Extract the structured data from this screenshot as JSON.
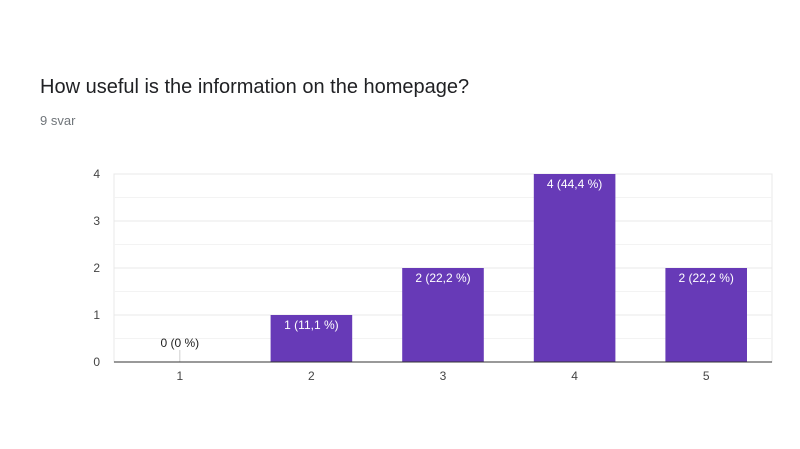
{
  "question": {
    "title": "How useful is the information on the homepage?",
    "responses": "9 svar"
  },
  "colors": {
    "bar": "#673ab7",
    "grid": "#e8e8e8",
    "axis": "#333333",
    "text": "#202124",
    "subtext": "#70757a"
  },
  "chart_data": {
    "type": "bar",
    "categories": [
      "1",
      "2",
      "3",
      "4",
      "5"
    ],
    "values": [
      0,
      1,
      2,
      4,
      2
    ],
    "data_labels": [
      "0 (0 %)",
      "1 (11,1 %)",
      "2 (22,2 %)",
      "4 (44,4 %)",
      "2 (22,2 %)"
    ],
    "y_ticks": [
      "0",
      "1",
      "2",
      "3",
      "4"
    ],
    "ylim": [
      0,
      4
    ],
    "minor_gridlines": true,
    "title": "",
    "xlabel": "",
    "ylabel": ""
  }
}
